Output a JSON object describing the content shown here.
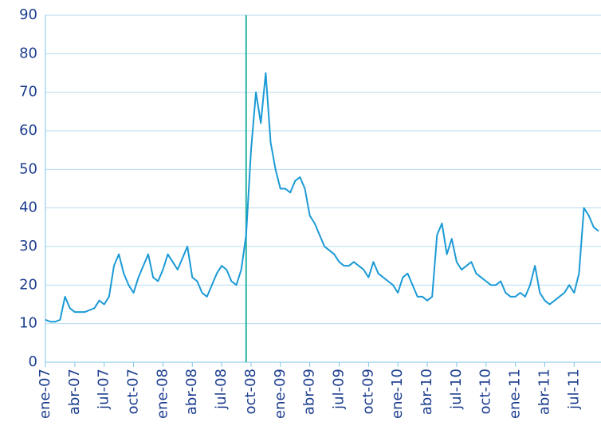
{
  "chart_data": {
    "type": "line",
    "categories": [
      "ene-07",
      null,
      null,
      null,
      null,
      null,
      "abr-07",
      null,
      null,
      null,
      null,
      null,
      "jul-07",
      null,
      null,
      null,
      null,
      null,
      "oct-07",
      null,
      null,
      null,
      null,
      null,
      "ene-08",
      null,
      null,
      null,
      null,
      null,
      "abr-08",
      null,
      null,
      null,
      null,
      null,
      "jul-08",
      null,
      null,
      null,
      null,
      null,
      "oct-08",
      null,
      null,
      null,
      null,
      null,
      "ene-09",
      null,
      null,
      null,
      null,
      null,
      "abr-09",
      null,
      null,
      null,
      null,
      null,
      "jul-09",
      null,
      null,
      null,
      null,
      null,
      "oct-09",
      null,
      null,
      null,
      null,
      null,
      "ene-10",
      null,
      null,
      null,
      null,
      null,
      "abr-10",
      null,
      null,
      null,
      null,
      null,
      "jul-10",
      null,
      null,
      null,
      null,
      null,
      "oct-10",
      null,
      null,
      null,
      null,
      null,
      "ene-11",
      null,
      null,
      null,
      null,
      null,
      "abr-11",
      null,
      null,
      null,
      null,
      null,
      "jul-11",
      null,
      null,
      null,
      null,
      null
    ],
    "values": [
      11,
      10.5,
      10.5,
      11,
      17,
      14,
      13,
      13,
      13,
      13.5,
      14,
      16,
      15,
      17,
      25,
      28,
      23,
      20,
      18,
      22,
      25,
      28,
      22,
      21,
      24,
      28,
      26,
      24,
      27,
      30,
      22,
      21,
      18,
      17,
      20,
      23,
      25,
      24,
      21,
      20,
      24,
      33,
      55,
      70,
      62,
      75,
      57,
      50,
      45,
      45,
      44,
      47,
      48,
      45,
      38,
      36,
      33,
      30,
      29,
      28,
      26,
      25,
      25,
      26,
      25,
      24,
      22,
      26,
      23,
      22,
      21,
      20,
      18,
      22,
      23,
      20,
      17,
      17,
      16,
      17,
      33,
      36,
      28,
      32,
      26,
      24,
      25,
      26,
      23,
      22,
      21,
      20,
      20,
      21,
      18,
      17,
      17,
      18,
      17,
      20,
      25,
      18,
      16,
      15,
      16,
      17,
      18,
      20,
      18,
      23,
      40,
      38,
      35,
      34
    ],
    "color": "#1b9ad6",
    "ylim": [
      0,
      90
    ],
    "yticks": [
      0,
      10,
      20,
      30,
      40,
      50,
      60,
      70,
      80,
      90
    ],
    "grid": true,
    "vline": {
      "x": 41,
      "color": "#2bb3a3"
    }
  }
}
